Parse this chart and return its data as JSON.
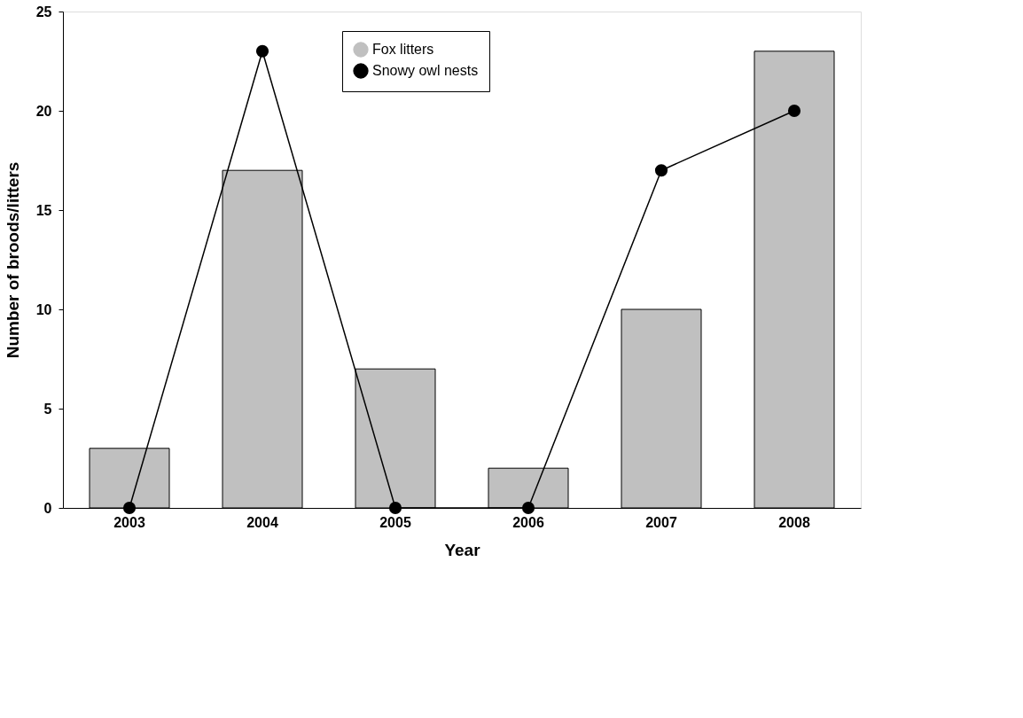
{
  "chart_data": {
    "type": "bar",
    "xlabel": "Year",
    "ylabel": "Number of broods/litters",
    "categories": [
      "2003",
      "2004",
      "2005",
      "2006",
      "2007",
      "2008"
    ],
    "series": [
      {
        "name": "Fox litters",
        "color": "#c0c0c0",
        "values": [
          3,
          17,
          7,
          2,
          10,
          23
        ]
      },
      {
        "name": "Snowy owl nests",
        "type": "line",
        "color": "#000000",
        "values": [
          0,
          23,
          0,
          0,
          17,
          20
        ]
      }
    ],
    "ylim": [
      0,
      25
    ],
    "yticks": [
      0,
      5,
      10,
      15,
      20,
      25
    ],
    "grid": false,
    "legend": "top",
    "marker": "circle",
    "line_style": "solid"
  }
}
